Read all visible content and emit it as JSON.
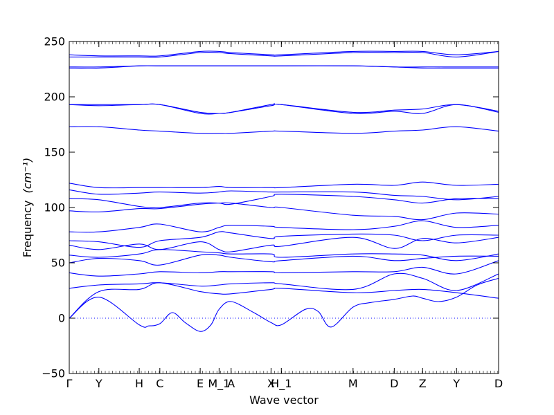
{
  "chart_data": {
    "type": "line",
    "xlabel": "Wave vector",
    "ylabel": "Frequency",
    "ylabel_unit": "(cm⁻¹)",
    "ylim": [
      -50,
      250
    ],
    "yticks": [
      -50,
      0,
      50,
      100,
      150,
      200,
      250
    ],
    "grid": false,
    "legend": "none",
    "line_color": "#0000ff",
    "zero_line_color": "#0000ff",
    "xlim": [
      0,
      1
    ],
    "kpoints": [
      {
        "label": "Γ",
        "x": 0.0
      },
      {
        "label": "Y",
        "x": 0.069
      },
      {
        "label": "H",
        "x": 0.163
      },
      {
        "label": "C",
        "x": 0.211
      },
      {
        "label": "E",
        "x": 0.305
      },
      {
        "label": "M_1",
        "x": 0.349
      },
      {
        "label": "A",
        "x": 0.377
      },
      {
        "label": "X",
        "x": 0.47
      },
      {
        "label": "H_1",
        "x": 0.494
      },
      {
        "label": "M",
        "x": 0.661
      },
      {
        "label": "D",
        "x": 0.757
      },
      {
        "label": "Z",
        "x": 0.823
      },
      {
        "label": "Y",
        "x": 0.902
      },
      {
        "label": "D",
        "x": 1.0
      }
    ],
    "series": [
      {
        "x": [
          0,
          0.069,
          0.163,
          0.185,
          0.211,
          0.24,
          0.27,
          0.305,
          0.33,
          0.349,
          0.377,
          0.43,
          0.47,
          0.494,
          0.55,
          0.58,
          0.61,
          0.661,
          0.7,
          0.757,
          0.8,
          0.823,
          0.86,
          0.902,
          0.95,
          1.0
        ],
        "y": [
          0,
          19,
          -6,
          -7,
          -5,
          5,
          -4,
          -12,
          -6,
          8,
          15,
          5,
          -4,
          -6,
          8,
          6,
          -8,
          10,
          14,
          17,
          20,
          18,
          15,
          19,
          30,
          36
        ]
      },
      {
        "x": [
          0,
          0.069,
          0.163,
          0.211,
          0.305,
          0.349,
          0.377,
          0.47,
          0.494,
          0.661,
          0.757,
          0.823,
          0.902,
          1.0
        ],
        "y": [
          0,
          24,
          26,
          32,
          24,
          22,
          22,
          26,
          27,
          23,
          25,
          26,
          23,
          18
        ]
      },
      {
        "x": [
          0,
          0.069,
          0.163,
          0.211,
          0.305,
          0.349,
          0.377,
          0.47,
          0.494,
          0.661,
          0.757,
          0.823,
          0.902,
          1.0
        ],
        "y": [
          27,
          30,
          31,
          32,
          29,
          30,
          31,
          32,
          31,
          26,
          40,
          36,
          25,
          40
        ]
      },
      {
        "x": [
          0,
          0.069,
          0.163,
          0.211,
          0.305,
          0.349,
          0.377,
          0.47,
          0.494,
          0.661,
          0.757,
          0.823,
          0.902,
          1.0
        ],
        "y": [
          41,
          38,
          40,
          42,
          41,
          42,
          42,
          42,
          41,
          42,
          42,
          46,
          40,
          52
        ]
      },
      {
        "x": [
          0,
          0.069,
          0.163,
          0.211,
          0.305,
          0.349,
          0.377,
          0.47,
          0.494,
          0.661,
          0.757,
          0.823,
          0.902,
          1.0
        ],
        "y": [
          50,
          54,
          52,
          48,
          57,
          57,
          55,
          51,
          52,
          56,
          52,
          54,
          56,
          56
        ]
      },
      {
        "x": [
          0,
          0.069,
          0.163,
          0.211,
          0.305,
          0.349,
          0.377,
          0.47,
          0.494,
          0.661,
          0.757,
          0.823,
          0.902,
          1.0
        ],
        "y": [
          57,
          55,
          58,
          62,
          60,
          59,
          58,
          58,
          55,
          58,
          58,
          57,
          52,
          58
        ]
      },
      {
        "x": [
          0,
          0.069,
          0.163,
          0.211,
          0.305,
          0.349,
          0.377,
          0.47,
          0.494,
          0.661,
          0.757,
          0.823,
          0.902,
          1.0
        ],
        "y": [
          66,
          62,
          67,
          62,
          69,
          62,
          60,
          66,
          65,
          73,
          63,
          72,
          68,
          73
        ]
      },
      {
        "x": [
          0,
          0.069,
          0.163,
          0.211,
          0.305,
          0.349,
          0.377,
          0.47,
          0.494,
          0.661,
          0.757,
          0.823,
          0.902,
          1.0
        ],
        "y": [
          70,
          69,
          64,
          70,
          73,
          78,
          77,
          72,
          74,
          76,
          75,
          70,
          75,
          75
        ]
      },
      {
        "x": [
          0,
          0.069,
          0.163,
          0.211,
          0.305,
          0.349,
          0.377,
          0.47,
          0.494,
          0.661,
          0.757,
          0.823,
          0.902,
          1.0
        ],
        "y": [
          78,
          78,
          82,
          85,
          78,
          82,
          84,
          83,
          82,
          80,
          83,
          88,
          82,
          84
        ]
      },
      {
        "x": [
          0,
          0.069,
          0.163,
          0.211,
          0.305,
          0.349,
          0.377,
          0.47,
          0.494,
          0.661,
          0.757,
          0.823,
          0.902,
          1.0
        ],
        "y": [
          97,
          96,
          99,
          99,
          103,
          104,
          104,
          100,
          100,
          93,
          92,
          89,
          95,
          94
        ]
      },
      {
        "x": [
          0,
          0.069,
          0.163,
          0.211,
          0.305,
          0.349,
          0.377,
          0.47,
          0.494,
          0.661,
          0.757,
          0.823,
          0.902,
          1.0
        ],
        "y": [
          108,
          107,
          101,
          100,
          104,
          104,
          103,
          110,
          112,
          110,
          107,
          104,
          108,
          108
        ]
      },
      {
        "x": [
          0,
          0.069,
          0.163,
          0.211,
          0.305,
          0.349,
          0.377,
          0.47,
          0.494,
          0.661,
          0.757,
          0.823,
          0.902,
          1.0
        ],
        "y": [
          116,
          112,
          113,
          114,
          113,
          114,
          115,
          114,
          114,
          114,
          111,
          110,
          107,
          110
        ]
      },
      {
        "x": [
          0,
          0.069,
          0.163,
          0.211,
          0.305,
          0.349,
          0.377,
          0.47,
          0.494,
          0.661,
          0.757,
          0.823,
          0.902,
          1.0
        ],
        "y": [
          122,
          118,
          118,
          118,
          118,
          119,
          118,
          118,
          118,
          121,
          120,
          123,
          120,
          121
        ]
      },
      {
        "x": [
          0,
          0.069,
          0.163,
          0.211,
          0.305,
          0.349,
          0.377,
          0.47,
          0.494,
          0.661,
          0.757,
          0.823,
          0.902,
          1.0
        ],
        "y": [
          173,
          173,
          170,
          169,
          167,
          167,
          167,
          169,
          169,
          167,
          169,
          170,
          173,
          169
        ]
      },
      {
        "x": [
          0,
          0.069,
          0.163,
          0.211,
          0.305,
          0.349,
          0.377,
          0.47,
          0.494,
          0.661,
          0.757,
          0.823,
          0.902,
          1.0
        ],
        "y": [
          193,
          193,
          193,
          193,
          185,
          185,
          186,
          193,
          193,
          185,
          187,
          185,
          193,
          186
        ]
      },
      {
        "x": [
          0,
          0.069,
          0.163,
          0.211,
          0.305,
          0.349,
          0.377,
          0.47,
          0.494,
          0.661,
          0.757,
          0.823,
          0.902,
          1.0
        ],
        "y": [
          193,
          192,
          193,
          193,
          186,
          185,
          186,
          192,
          193,
          186,
          188,
          189,
          193,
          187
        ]
      },
      {
        "x": [
          0,
          0.069,
          0.163,
          0.211,
          0.305,
          0.349,
          0.377,
          0.47,
          0.494,
          0.661,
          0.757,
          0.823,
          0.902,
          1.0
        ],
        "y": [
          226,
          226,
          228,
          228,
          228,
          228,
          228,
          228,
          228,
          228,
          227,
          226,
          226,
          226
        ]
      },
      {
        "x": [
          0,
          0.069,
          0.163,
          0.211,
          0.305,
          0.349,
          0.377,
          0.47,
          0.494,
          0.661,
          0.757,
          0.823,
          0.902,
          1.0
        ],
        "y": [
          227,
          227,
          228,
          228,
          228,
          228,
          228,
          228,
          228,
          228,
          227,
          227,
          227,
          227
        ]
      },
      {
        "x": [
          0,
          0.069,
          0.163,
          0.211,
          0.305,
          0.349,
          0.377,
          0.47,
          0.494,
          0.661,
          0.757,
          0.823,
          0.902,
          1.0
        ],
        "y": [
          236,
          236,
          236,
          236,
          240,
          240,
          239,
          237,
          237,
          240,
          240,
          240,
          236,
          241
        ]
      },
      {
        "x": [
          0,
          0.069,
          0.163,
          0.211,
          0.305,
          0.349,
          0.377,
          0.47,
          0.494,
          0.661,
          0.757,
          0.823,
          0.902,
          1.0
        ],
        "y": [
          238,
          237,
          237,
          237,
          241,
          241,
          240,
          238,
          238,
          241,
          241,
          241,
          238,
          241
        ]
      }
    ]
  }
}
